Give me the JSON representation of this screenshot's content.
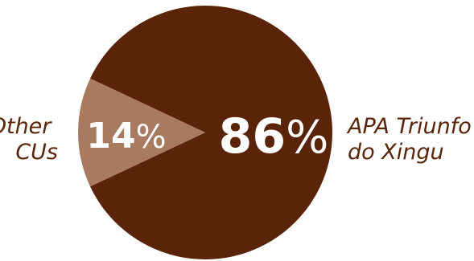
{
  "chart_data": {
    "type": "pie",
    "slices": [
      {
        "label_lines": [
          "APA Triunfo",
          "do Xingu"
        ],
        "value": 86,
        "value_text": "86",
        "unit": "%",
        "color": "#5a2408"
      },
      {
        "label_lines": [
          "Other",
          "CUs"
        ],
        "value": 14,
        "value_text": "14",
        "unit": "%",
        "color": "#a87a60"
      }
    ],
    "legend": "none",
    "grid": false,
    "text_colors": {
      "labels": "#5a2408",
      "values": "#ffffff"
    }
  }
}
